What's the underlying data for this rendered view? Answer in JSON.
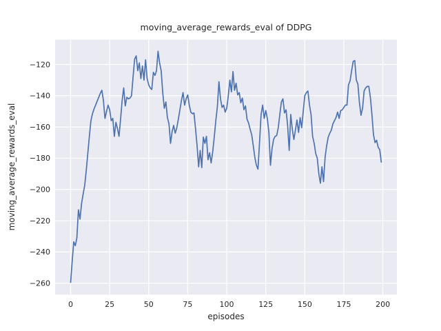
{
  "figure": {
    "title": "moving_average_rewards_eval of DDPG",
    "background_color": "#ffffff"
  },
  "chart_data": {
    "type": "line",
    "title": "moving_average_rewards_eval of DDPG",
    "xlabel": "episodes",
    "ylabel": "moving_average_rewards_eval",
    "xlim": [
      -9.93,
      209.0
    ],
    "ylim": [
      -267.3,
      -104.15
    ],
    "xticks": [
      0,
      25,
      50,
      75,
      100,
      125,
      150,
      175,
      200
    ],
    "yticks": [
      -120,
      -140,
      -160,
      -180,
      -200,
      -220,
      -240,
      -260
    ],
    "grid": true,
    "legend": false,
    "axes_background_color": "#eaeaf2",
    "grid_color": "#ffffff",
    "text_color": "#262626",
    "x_start": 0,
    "x_step": 1,
    "series": [
      {
        "name": "moving_average_rewards_eval",
        "color": "#4c72b0",
        "values": [
          -259.5,
          -246,
          -233.5,
          -236,
          -231,
          -213,
          -219,
          -209,
          -203,
          -197.5,
          -188,
          -177,
          -166,
          -156,
          -151.5,
          -148.5,
          -146,
          -143.5,
          -141,
          -138.5,
          -136.5,
          -143,
          -154.5,
          -150,
          -146,
          -149,
          -156,
          -154.5,
          -166,
          -157,
          -161,
          -166,
          -155,
          -143,
          -135,
          -146.5,
          -141,
          -142,
          -141.5,
          -140,
          -128,
          -116.5,
          -114.5,
          -124,
          -119,
          -129,
          -121,
          -130,
          -117,
          -129,
          -133,
          -135,
          -136,
          -125,
          -127,
          -124,
          -111.5,
          -119,
          -124,
          -138,
          -148,
          -144,
          -154,
          -158,
          -170.5,
          -163,
          -159,
          -164,
          -160.5,
          -155,
          -149,
          -143,
          -138,
          -146,
          -142,
          -139.5,
          -146,
          -150.5,
          -151.5,
          -151,
          -161,
          -172,
          -185.5,
          -175,
          -186,
          -166.5,
          -170.5,
          -166,
          -181,
          -176.5,
          -183,
          -176,
          -166.5,
          -156,
          -147,
          -131,
          -142,
          -147.5,
          -146,
          -150.5,
          -148,
          -140,
          -130,
          -137.5,
          -124.5,
          -136.5,
          -132,
          -139.5,
          -138,
          -144.5,
          -141.5,
          -149,
          -146.5,
          -155,
          -157.5,
          -161.5,
          -165,
          -172,
          -179.5,
          -184.5,
          -187,
          -170,
          -152,
          -146,
          -154.5,
          -149.5,
          -154.5,
          -163.5,
          -184.5,
          -174,
          -168,
          -166,
          -165.5,
          -160.5,
          -152,
          -144,
          -142,
          -151,
          -149,
          -159,
          -175,
          -152,
          -161.5,
          -168,
          -162,
          -155.5,
          -163.5,
          -154,
          -160.5,
          -150,
          -140,
          -138,
          -137,
          -146,
          -152,
          -166,
          -170.5,
          -177,
          -180,
          -190,
          -196,
          -185.5,
          -195,
          -179.5,
          -172,
          -166.5,
          -164,
          -162,
          -158,
          -156,
          -154,
          -150.5,
          -154.5,
          -149.5,
          -149,
          -147.5,
          -146,
          -146,
          -133,
          -130.5,
          -124,
          -118,
          -117.5,
          -130,
          -132.5,
          -144.5,
          -152.5,
          -148,
          -137,
          -135,
          -134,
          -134,
          -141,
          -152,
          -165,
          -170,
          -168.5,
          -173,
          -174.5,
          -182.5
        ]
      }
    ]
  }
}
